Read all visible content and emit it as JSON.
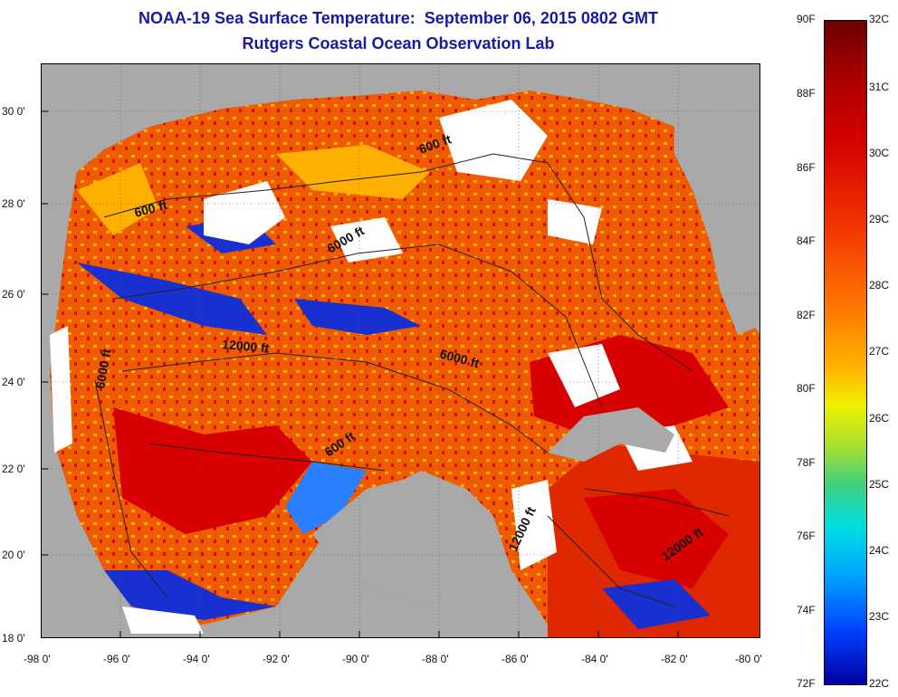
{
  "header": {
    "title": "NOAA-19 Sea Surface Temperature:  September 06, 2015 0802 GMT",
    "subtitle": "Rutgers Coastal Ocean Observation Lab"
  },
  "map": {
    "x_ticks": [
      "-98 0'",
      "-96 0'",
      "-94 0'",
      "-92 0'",
      "-90 0'",
      "-88 0'",
      "-86 0'",
      "-84 0'",
      "-82 0'",
      "-80 0'"
    ],
    "y_ticks": [
      "30 0'",
      "28 0'",
      "26 0'",
      "24 0'",
      "22 0'",
      "20 0'",
      "18 0'"
    ],
    "contour_labels": [
      "600 ft",
      "600 ft",
      "6000 ft",
      "12000 ft",
      "6000 ft",
      "6000 ft",
      "600 ft",
      "12000 ft",
      "12000 ft"
    ],
    "colors": {
      "land": "#a9a9a9",
      "cloud": "#ffffff",
      "warm": "#f03a00",
      "hot": "#d80000",
      "cool": "#1830d0",
      "mid": "#ffb000"
    }
  },
  "colorbar": {
    "f_labels": [
      "90F",
      "88F",
      "86F",
      "84F",
      "82F",
      "80F",
      "78F",
      "76F",
      "74F",
      "72F"
    ],
    "c_labels": [
      "32C",
      "31C",
      "30C",
      "29C",
      "28C",
      "27C",
      "26C",
      "25C",
      "24C",
      "23C",
      "22C"
    ]
  }
}
